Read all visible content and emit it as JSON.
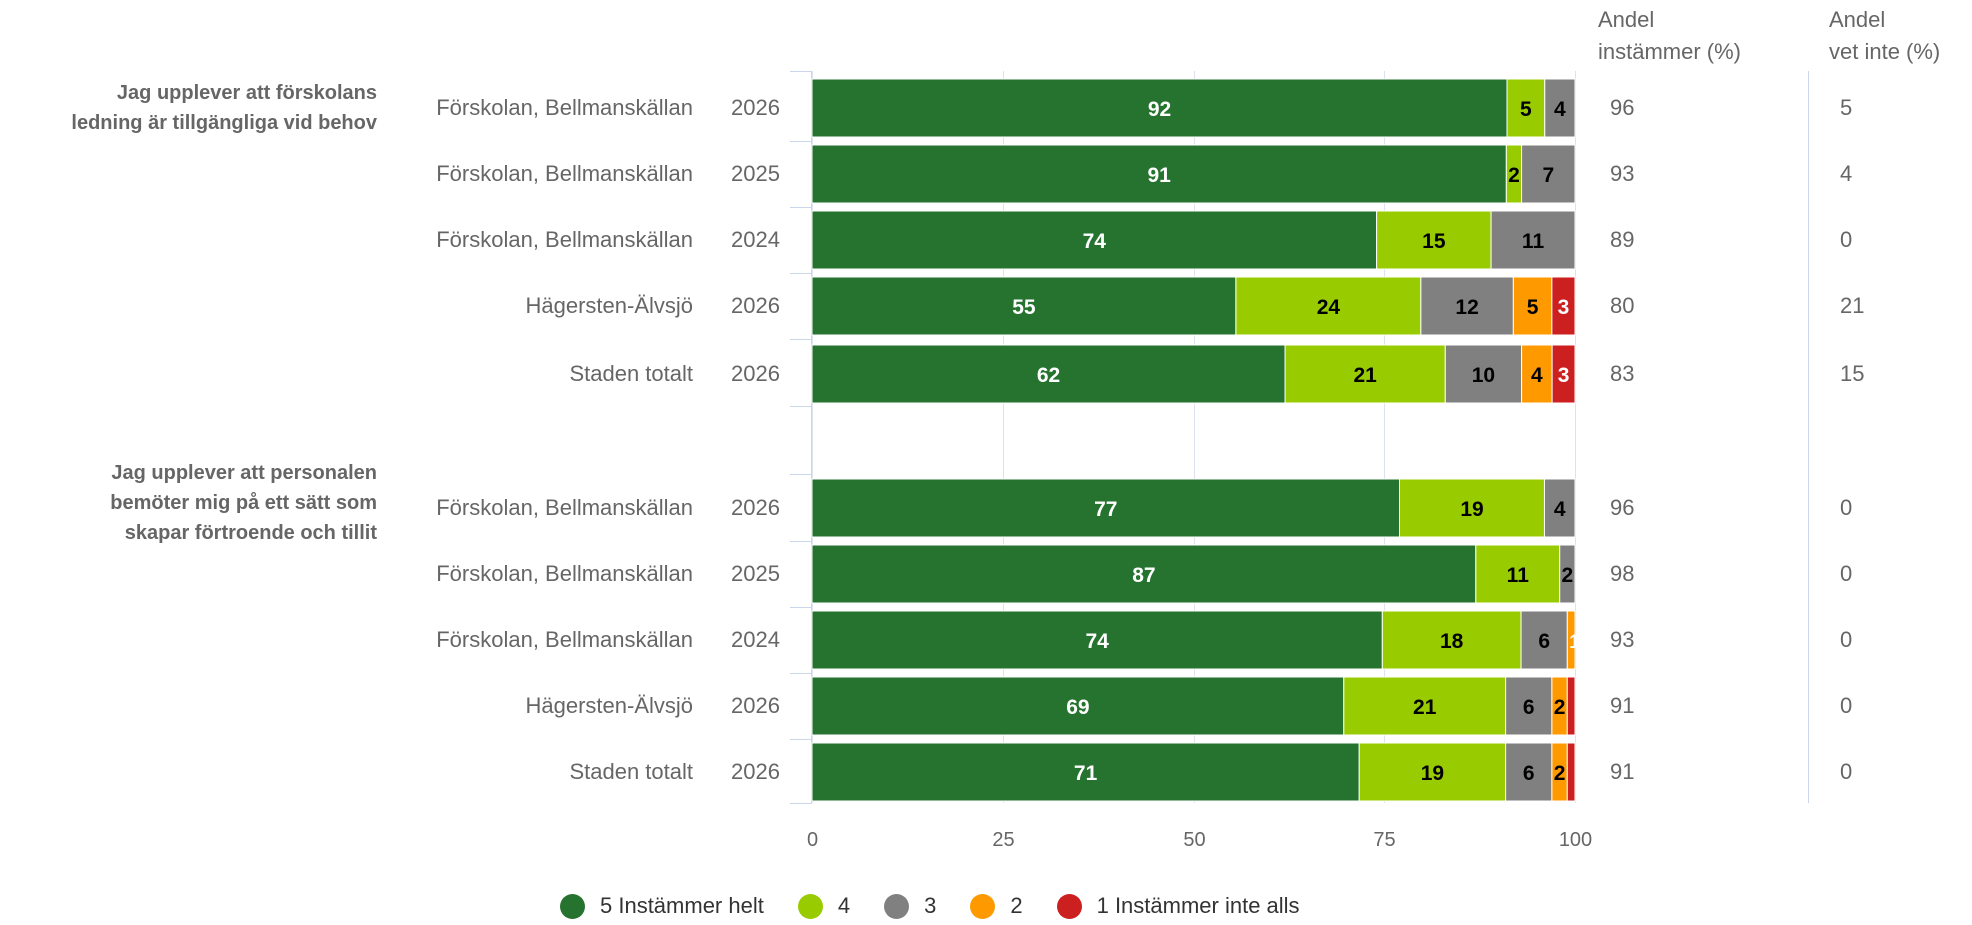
{
  "header": {
    "col1": "Andel\ninstämmer (%)",
    "col2": "Andel\nvet inte (%)"
  },
  "colors": {
    "s5": "#267330",
    "s4": "#99cc00",
    "s3": "#808080",
    "s2": "#ff9900",
    "s1": "#cc1f1f",
    "grid": "#dde3ec",
    "label": "#666666"
  },
  "chart_data": {
    "type": "bar",
    "orientation": "horizontal",
    "stacked": true,
    "xlim": [
      0,
      100
    ],
    "xticks": [
      "0",
      "25",
      "50",
      "75",
      "100"
    ],
    "legend_position": "bottom",
    "grid": true,
    "series": [
      {
        "name": "5 Instämmer helt",
        "color": "#267330"
      },
      {
        "name": "4",
        "color": "#99cc00"
      },
      {
        "name": "3",
        "color": "#808080"
      },
      {
        "name": "2",
        "color": "#ff9900"
      },
      {
        "name": "1 Instämmer inte alls",
        "color": "#cc1f1f"
      }
    ],
    "groups": [
      {
        "title": "Jag upplever att förskolans\nledning är tillgängliga vid behov",
        "rows": [
          {
            "unit": "Förskolan, Bellmanskällan",
            "year": "2026",
            "values": [
              92,
              5,
              4,
              0,
              0
            ],
            "instammer": "96",
            "vet_inte": "5"
          },
          {
            "unit": "Förskolan, Bellmanskällan",
            "year": "2025",
            "values": [
              91,
              2,
              7,
              0,
              0
            ],
            "instammer": "93",
            "vet_inte": "4"
          },
          {
            "unit": "Förskolan, Bellmanskällan",
            "year": "2024",
            "values": [
              74,
              15,
              11,
              0,
              0
            ],
            "instammer": "89",
            "vet_inte": "0"
          },
          {
            "unit": "Hägersten-Älvsjö",
            "year": "2026",
            "values": [
              55,
              24,
              12,
              5,
              3
            ],
            "instammer": "80",
            "vet_inte": "21"
          },
          {
            "unit": "Staden totalt",
            "year": "2026",
            "values": [
              62,
              21,
              10,
              4,
              3
            ],
            "instammer": "83",
            "vet_inte": "15"
          }
        ]
      },
      {
        "title": "Jag upplever att personalen\nbemöter mig på ett sätt som\nskapar förtroende och tillit",
        "rows": [
          {
            "unit": "Förskolan, Bellmanskällan",
            "year": "2026",
            "values": [
              77,
              19,
              4,
              0,
              0
            ],
            "instammer": "96",
            "vet_inte": "0"
          },
          {
            "unit": "Förskolan, Bellmanskällan",
            "year": "2025",
            "values": [
              87,
              11,
              2,
              0,
              0
            ],
            "instammer": "98",
            "vet_inte": "0"
          },
          {
            "unit": "Förskolan, Bellmanskällan",
            "year": "2024",
            "values": [
              74,
              18,
              6,
              1,
              0
            ],
            "instammer": "93",
            "vet_inte": "0"
          },
          {
            "unit": "Hägersten-Älvsjö",
            "year": "2026",
            "values": [
              69,
              21,
              6,
              2,
              1
            ],
            "instammer": "91",
            "vet_inte": "0"
          },
          {
            "unit": "Staden totalt",
            "year": "2026",
            "values": [
              71,
              19,
              6,
              2,
              1
            ],
            "instammer": "91",
            "vet_inte": "0"
          }
        ]
      }
    ]
  }
}
